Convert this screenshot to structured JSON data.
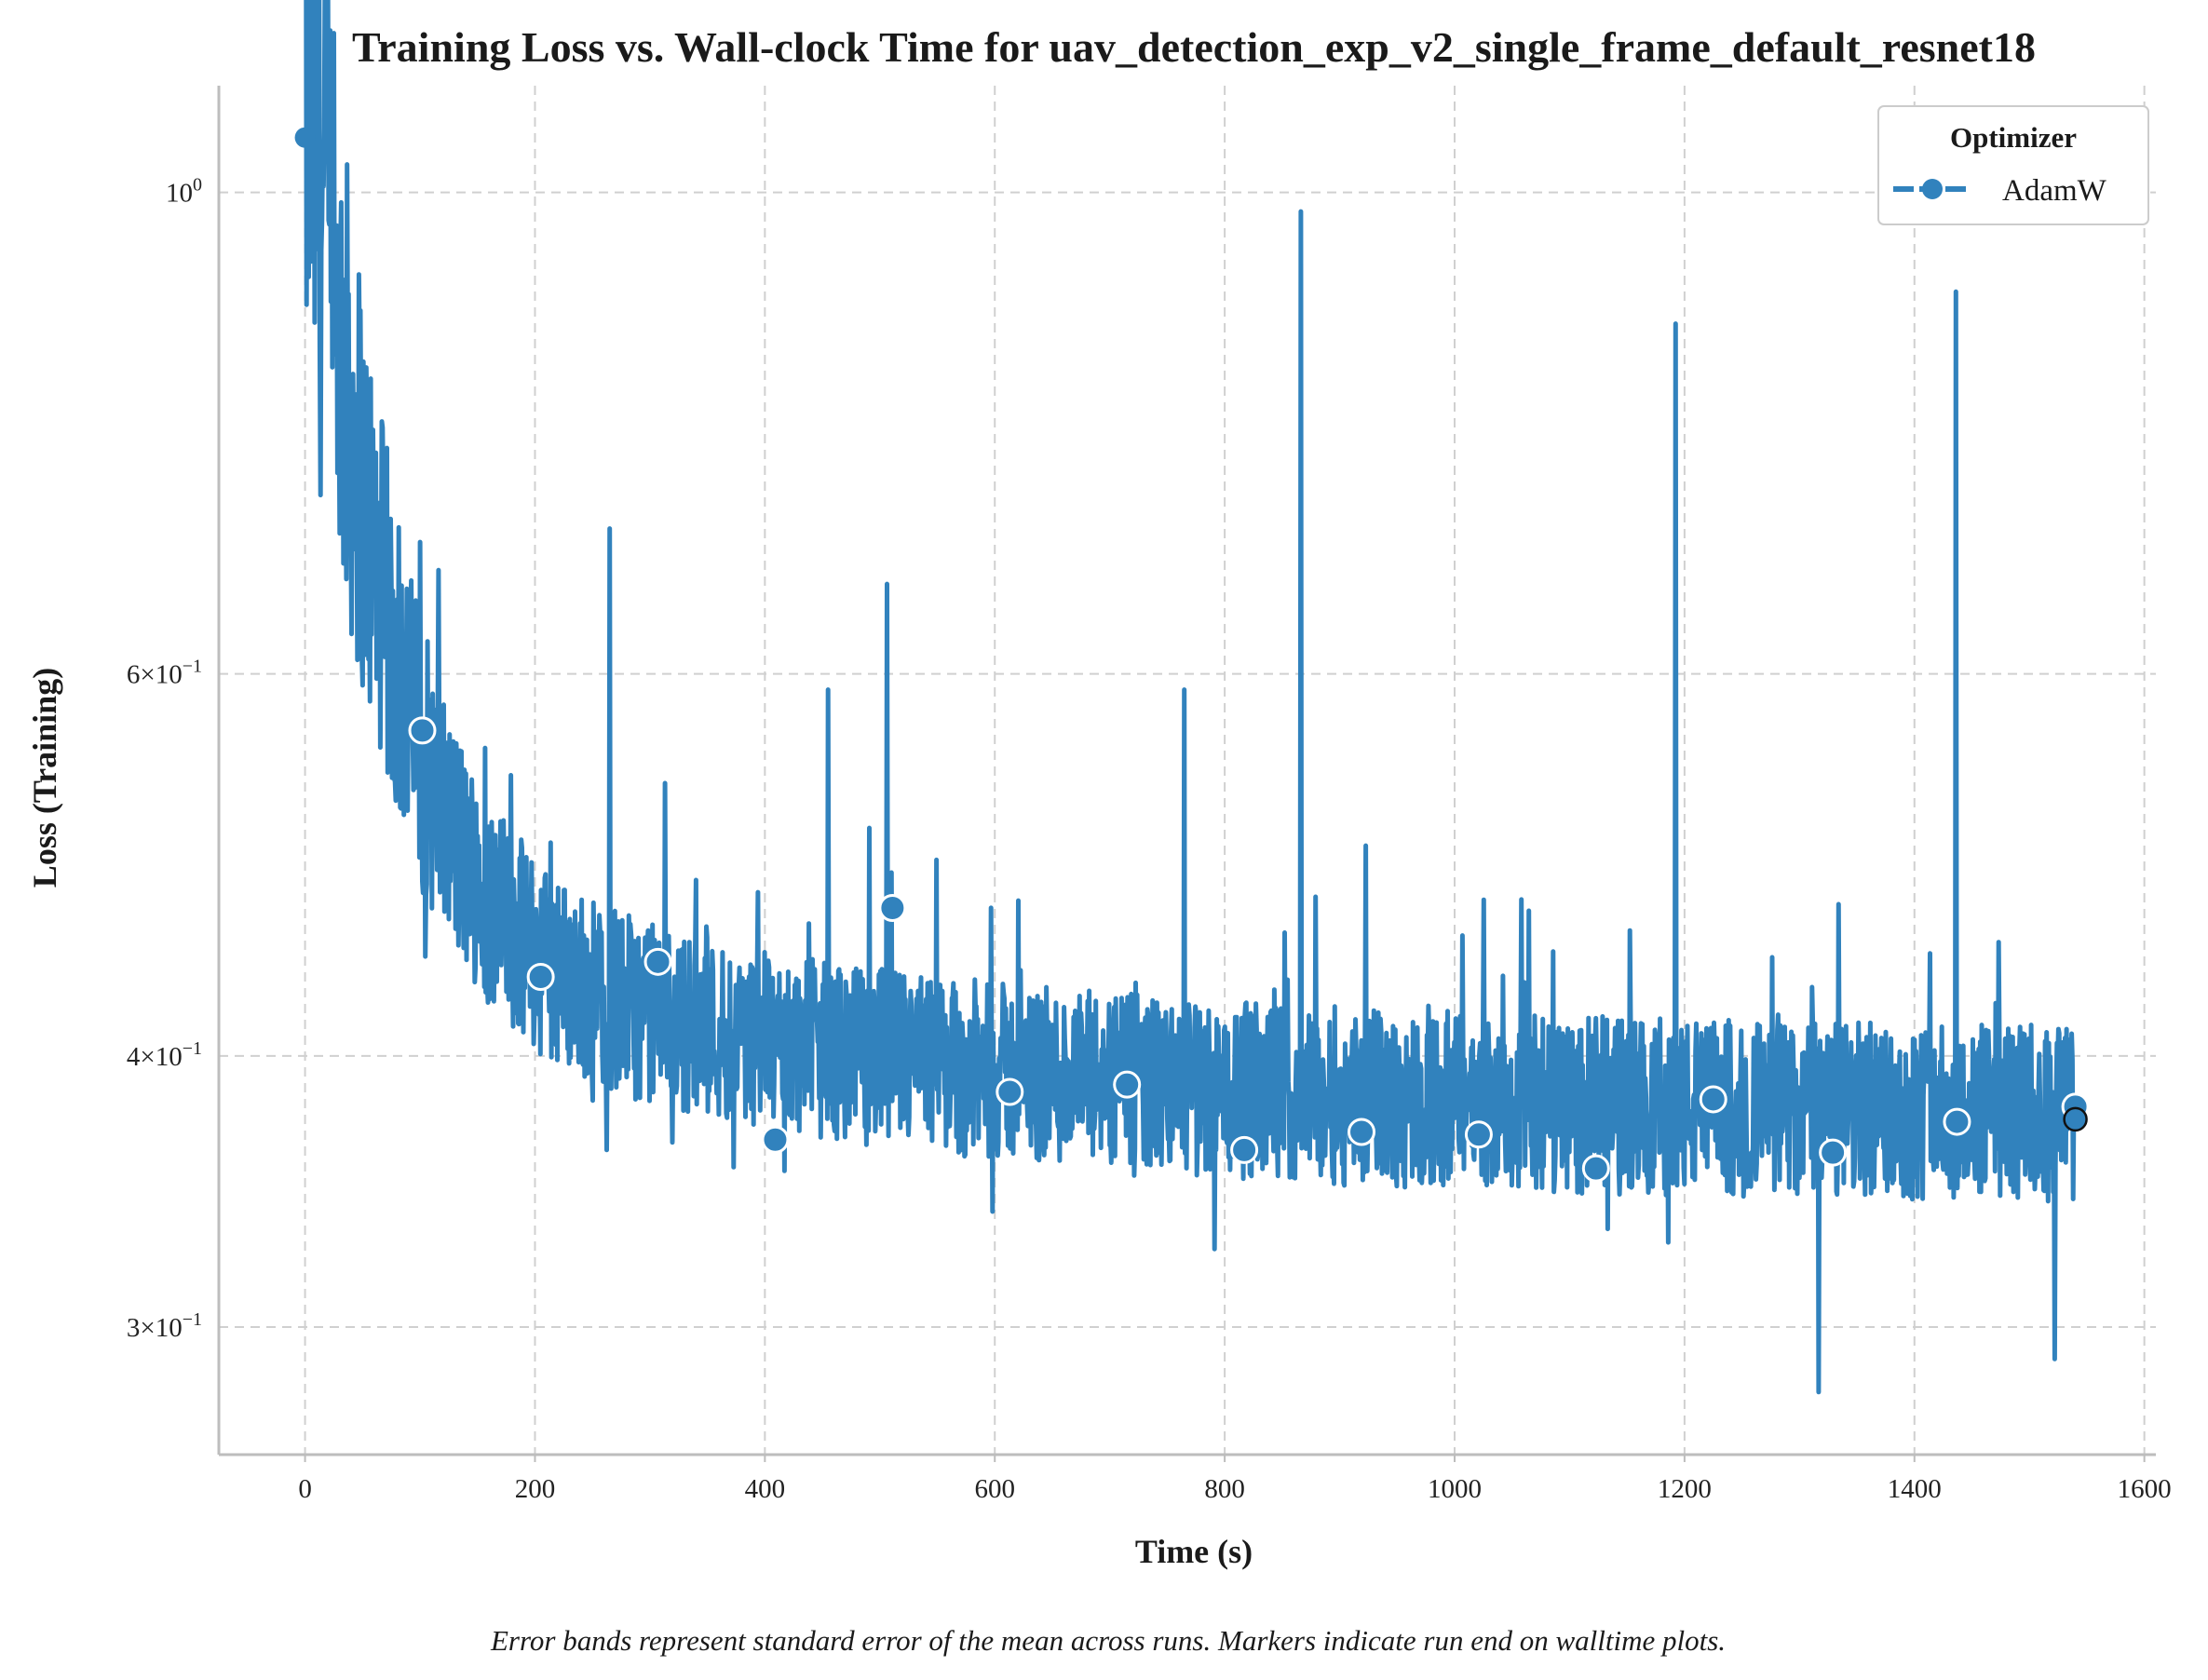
{
  "chart_data": {
    "type": "line",
    "title": "Training Loss vs. Wall-clock Time for uav_detection_exp_v2_single_frame_default_resnet18",
    "xlabel": "Time (s)",
    "ylabel": "Loss (Training)",
    "xlim": [
      -75,
      1610
    ],
    "ylim": [
      0.262,
      1.12
    ],
    "yscale": "log",
    "grid": true,
    "x_ticks": [
      {
        "value": 0,
        "label": "0"
      },
      {
        "value": 200,
        "label": "200"
      },
      {
        "value": 400,
        "label": "400"
      },
      {
        "value": 600,
        "label": "600"
      },
      {
        "value": 800,
        "label": "800"
      },
      {
        "value": 1000,
        "label": "1000"
      },
      {
        "value": 1200,
        "label": "1200"
      },
      {
        "value": 1400,
        "label": "1400"
      },
      {
        "value": 1600,
        "label": "1600"
      }
    ],
    "y_ticks": [
      {
        "value": 1.0,
        "base": "10",
        "exp": "0"
      },
      {
        "value": 0.6,
        "base": "6×10",
        "exp": "−1"
      },
      {
        "value": 0.4,
        "base": "4×10",
        "exp": "−1"
      },
      {
        "value": 0.3,
        "base": "3×10",
        "exp": "−1"
      }
    ],
    "legend": {
      "title": "Optimizer",
      "placement": "top-right"
    },
    "series": [
      {
        "name": "AdamW",
        "color": "#3182bd",
        "x_range": [
          0,
          1540
        ],
        "start_value": 1.06,
        "end_value": 0.375,
        "spikes": [
          {
            "x": 265,
            "y": 0.7
          },
          {
            "x": 100,
            "y": 0.69
          },
          {
            "x": 506,
            "y": 0.66
          },
          {
            "x": 455,
            "y": 0.59
          },
          {
            "x": 765,
            "y": 0.59
          },
          {
            "x": 866,
            "y": 0.98
          },
          {
            "x": 1192,
            "y": 0.87
          },
          {
            "x": 1436,
            "y": 0.9
          },
          {
            "x": 923,
            "y": 0.5
          },
          {
            "x": 1317,
            "y": 0.28
          },
          {
            "x": 1522,
            "y": 0.29
          }
        ],
        "markers": [
          {
            "x": 102,
            "y": 0.565
          },
          {
            "x": 205,
            "y": 0.435
          },
          {
            "x": 307,
            "y": 0.442
          },
          {
            "x": 409,
            "y": 0.366
          },
          {
            "x": 511,
            "y": 0.468
          },
          {
            "x": 613,
            "y": 0.385
          },
          {
            "x": 715,
            "y": 0.388
          },
          {
            "x": 817,
            "y": 0.362
          },
          {
            "x": 919,
            "y": 0.369
          },
          {
            "x": 1021,
            "y": 0.368
          },
          {
            "x": 1123,
            "y": 0.355
          },
          {
            "x": 1225,
            "y": 0.382
          },
          {
            "x": 1329,
            "y": 0.361
          },
          {
            "x": 1437,
            "y": 0.373
          },
          {
            "x": 1540,
            "y": 0.379
          }
        ],
        "end_marker": {
          "x": 1540,
          "y": 0.374
        }
      }
    ]
  },
  "footnote": "Error bands represent standard error of the mean across runs. Markers indicate run end on walltime plots."
}
